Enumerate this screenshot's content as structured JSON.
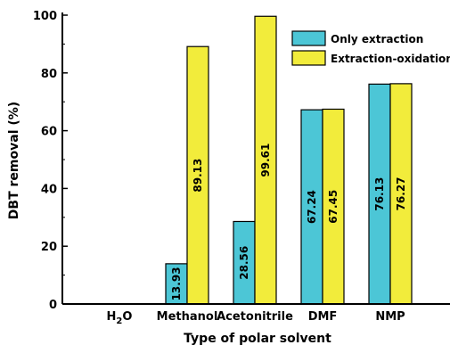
{
  "chart_data": {
    "type": "bar",
    "title": "",
    "xlabel": "Type of polar solvent",
    "ylabel": "DBT removal (%)",
    "ylim": [
      0,
      100
    ],
    "yticks": [
      0,
      20,
      40,
      60,
      80,
      100
    ],
    "grid": false,
    "legend_position": "top-right",
    "categories": [
      {
        "base": "H",
        "sub": "2",
        "rest": "O"
      },
      {
        "base": "Methanol",
        "sub": "",
        "rest": ""
      },
      {
        "base": "Acetonitrile",
        "sub": "",
        "rest": ""
      },
      {
        "base": "DMF",
        "sub": "",
        "rest": ""
      },
      {
        "base": "NMP",
        "sub": "",
        "rest": ""
      }
    ],
    "series": [
      {
        "name": "Only extraction",
        "color": "#4cc6d6",
        "values": [
          null,
          13.93,
          28.56,
          67.24,
          76.13
        ],
        "labels": [
          "",
          "13.93",
          "28.56",
          "67.24",
          "76.13"
        ]
      },
      {
        "name": "Extraction-oxidation",
        "color": "#f2ec3b",
        "values": [
          null,
          89.13,
          99.61,
          67.45,
          76.27
        ],
        "labels": [
          "",
          "89.13",
          "99.61",
          "67.45",
          "76.27"
        ]
      }
    ]
  }
}
